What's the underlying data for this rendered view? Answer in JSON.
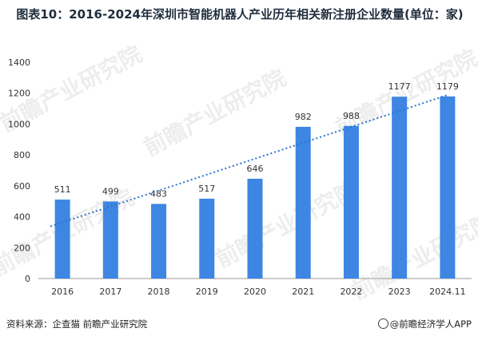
{
  "title": "图表10：2016-2024年深圳市智能机器人产业历年相关新注册企业数量(单位：家)",
  "source": "资料来源：企查猫 前瞻产业研究院",
  "brand": "@前瞻经济学人APP",
  "watermark": "前瞻产业研究院",
  "colors": {
    "bar": "#3d86e3",
    "trend": "#2a74c9",
    "axis": "#999999",
    "text": "#333333"
  },
  "chart_data": {
    "type": "bar",
    "categories": [
      "2016",
      "2017",
      "2018",
      "2019",
      "2020",
      "2021",
      "2022",
      "2023",
      "2024.11"
    ],
    "values": [
      511,
      499,
      483,
      517,
      646,
      982,
      988,
      1177,
      1179
    ],
    "ylim": [
      0,
      1400
    ],
    "yticks": [
      0,
      200,
      400,
      600,
      800,
      1000,
      1200,
      1400
    ],
    "xlabel": "",
    "ylabel": "",
    "trendline": "linear",
    "data_labels": true
  }
}
